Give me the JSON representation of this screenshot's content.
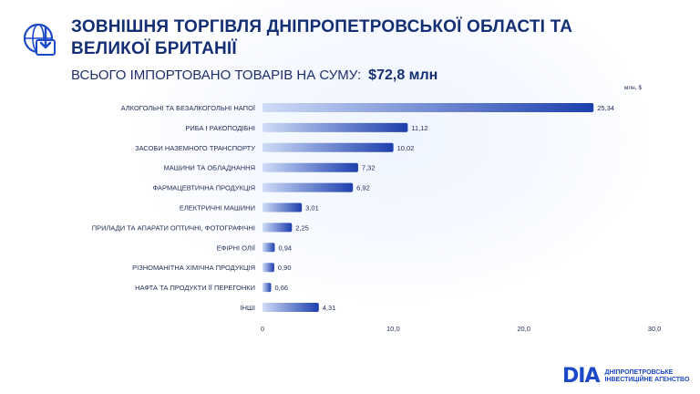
{
  "header": {
    "title": "Зовнішня торгівля Дніпропетровської області та Великої Британії",
    "subtitle_label": "ВСЬОГО ІМПОРТОВАНО ТОВАРІВ НА СУМУ:",
    "subtitle_amount": "$72,8 млн"
  },
  "footer": {
    "logo_mark": "DIA",
    "org_line1": "ДНІПРОПЕТРОВСЬКЕ",
    "org_line2": "ІНВЕСТИЦІЙНЕ АГЕНСТВО"
  },
  "colors": {
    "title": "#142f73",
    "bar_start": "#cfdcf7",
    "bar_end": "#1c3fae",
    "text": "#1e2a55"
  },
  "icons": [
    "import-globe-icon"
  ],
  "chart_data": {
    "type": "bar",
    "orientation": "horizontal",
    "unit_label": "млн, $",
    "categories": [
      "АЛКОГОЛЬНІ ТА БЕЗАЛКОГОЛЬНІ НАПОЇ",
      "РИБА І РАКОПОДІБНІ",
      "ЗАСОБИ НАЗЕМНОГО ТРАНСПОРТУ",
      "МАШИНИ ТА ОБЛАДНАННЯ",
      "ФАРМАЦЕВТИЧНА ПРОДУКЦІЯ",
      "ЕЛЕКТРИЧНІ МАШИНИ",
      "ПРИЛАДИ ТА АПАРАТИ ОПТИЧНІ, ФОТОГРАФІЧНІ",
      "ЕФІРНІ ОЛІЇ",
      "РІЗНОМАНІТНА ХІМІЧНА ПРОДУКЦІЯ",
      "НАФТА ТА ПРОДУКТИ ЇЇ ПЕРЕГОНКИ",
      "ІНШІ"
    ],
    "values": [
      25.34,
      11.12,
      10.02,
      7.32,
      6.92,
      3.01,
      2.25,
      0.94,
      0.9,
      0.66,
      4.31
    ],
    "value_labels": [
      "25,34",
      "11,12",
      "10,02",
      "7,32",
      "6,92",
      "3,01",
      "2,25",
      "0,94",
      "0,90",
      "0,66",
      "4,31"
    ],
    "xlim": [
      0,
      30
    ],
    "xticks": [
      0,
      10,
      20,
      30
    ],
    "xtick_labels": [
      "0",
      "10,0",
      "20,0",
      "30,0"
    ],
    "grid": false,
    "legend": "none"
  }
}
